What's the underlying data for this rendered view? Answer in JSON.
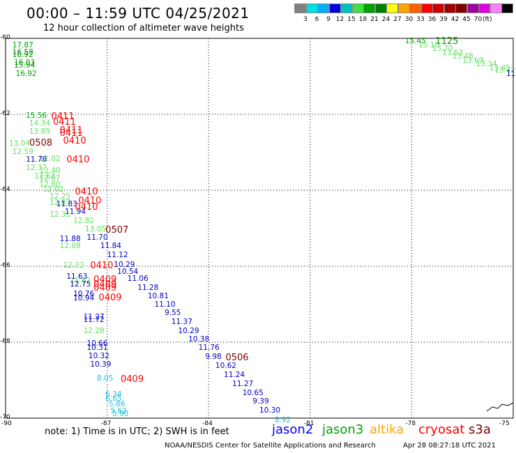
{
  "header": {
    "title": "00:00 – 11:59 UTC 04/25/2021",
    "subtitle": "12 hour collection of altimeter wave heights"
  },
  "legend": {
    "colors": [
      "#808080",
      "#00e0e0",
      "#00b0ff",
      "#0000e0",
      "#00c0c0",
      "#40e040",
      "#00a000",
      "#008000",
      "#ffff00",
      "#ffa500",
      "#ff6000",
      "#ff0000",
      "#d00000",
      "#a00000",
      "#800000",
      "#a000a0",
      "#e000e0",
      "#ff80ff",
      "#000000"
    ],
    "labels": [
      "3",
      "6",
      "9",
      "12",
      "15",
      "18",
      "21",
      "24",
      "27",
      "30",
      "33",
      "36",
      "39",
      "42",
      "45",
      "70"
    ],
    "unit": "(ft)"
  },
  "axes": {
    "lat_labels": [
      "-60",
      "-62",
      "-64",
      "-66",
      "-68",
      "-70"
    ],
    "lon_labels": [
      "-90",
      "-87",
      "-84",
      "-81",
      "-78",
      "-75"
    ]
  },
  "colors": {
    "jason2": "#0000c0",
    "jason3": "#00a000",
    "jason3_light": "#60e060",
    "altika": "#ffa500",
    "cryosat": "#ff0000",
    "cryosat_dark": "#800000",
    "s3a": "#800000",
    "cyan": "#20c0e0"
  },
  "observations": [
    {
      "v": "17.87",
      "c": "jason3",
      "lon": -89.8,
      "lat": -60.2
    },
    {
      "v": "16.58",
      "c": "jason3",
      "lon": -89.8,
      "lat": -60.38
    },
    {
      "v": "16.92",
      "c": "jason3",
      "lon": -89.8,
      "lat": -60.46
    },
    {
      "v": "16.03",
      "c": "jason3",
      "lon": -89.75,
      "lat": -60.66
    },
    {
      "v": "15.94",
      "c": "jason3",
      "lon": -89.75,
      "lat": -60.74
    },
    {
      "v": "16.92",
      "c": "jason3",
      "lon": -89.7,
      "lat": -60.96
    },
    {
      "v": "15.56",
      "c": "jason3",
      "lon": -89.4,
      "lat": -62.05
    },
    {
      "v": "14.34",
      "c": "jason3_light",
      "lon": -89.3,
      "lat": -62.25
    },
    {
      "v": "13.89",
      "c": "jason3_light",
      "lon": -89.3,
      "lat": -62.48
    },
    {
      "v": "13.04",
      "c": "jason3_light",
      "lon": -89.9,
      "lat": -62.78
    },
    {
      "v": "12.59",
      "c": "jason3_light",
      "lon": -89.8,
      "lat": -63.0
    },
    {
      "v": "12.02",
      "c": "jason3_light",
      "lon": -89.0,
      "lat": -63.2
    },
    {
      "v": "11.78",
      "c": "jason2",
      "lon": -89.4,
      "lat": -63.22
    },
    {
      "v": "12.37",
      "c": "jason3_light",
      "lon": -89.4,
      "lat": -63.43
    },
    {
      "v": "12.40",
      "c": "jason3_light",
      "lon": -89.0,
      "lat": -63.5
    },
    {
      "v": "12.62",
      "c": "jason3_light",
      "lon": -89.15,
      "lat": -63.65
    },
    {
      "v": "12.07",
      "c": "jason3_light",
      "lon": -89.0,
      "lat": -63.7
    },
    {
      "v": "12.80",
      "c": "jason3_light",
      "lon": -89.0,
      "lat": -63.88
    },
    {
      "v": "12.02",
      "c": "jason3_light",
      "lon": -88.9,
      "lat": -64.0
    },
    {
      "v": "12.25",
      "c": "jason3_light",
      "lon": -88.7,
      "lat": -64.18
    },
    {
      "v": "12.87",
      "c": "jason3_light",
      "lon": -88.7,
      "lat": -64.34
    },
    {
      "v": "11.83",
      "c": "jason2",
      "lon": -88.5,
      "lat": -64.38
    },
    {
      "v": "11.94",
      "c": "jason2",
      "lon": -88.25,
      "lat": -64.58
    },
    {
      "v": "12.31",
      "c": "jason3_light",
      "lon": -88.7,
      "lat": -64.66
    },
    {
      "v": "12.82",
      "c": "jason3_light",
      "lon": -88.0,
      "lat": -64.82
    },
    {
      "v": "13.05",
      "c": "jason3_light",
      "lon": -87.65,
      "lat": -65.05
    },
    {
      "v": "11.70",
      "c": "jason2",
      "lon": -87.6,
      "lat": -65.26
    },
    {
      "v": "11.88",
      "c": "jason2",
      "lon": -88.4,
      "lat": -65.3
    },
    {
      "v": "11.84",
      "c": "jason2",
      "lon": -87.2,
      "lat": -65.48
    },
    {
      "v": "12.08",
      "c": "jason3_light",
      "lon": -88.4,
      "lat": -65.48
    },
    {
      "v": "11.12",
      "c": "jason2",
      "lon": -87.0,
      "lat": -65.73
    },
    {
      "v": "12.32",
      "c": "jason3_light",
      "lon": -88.3,
      "lat": -66.0
    },
    {
      "v": "10.29",
      "c": "jason2",
      "lon": -86.8,
      "lat": -65.98
    },
    {
      "v": "10.54",
      "c": "jason2",
      "lon": -86.7,
      "lat": -66.16
    },
    {
      "v": "11.63",
      "c": "jason2",
      "lon": -88.2,
      "lat": -66.3
    },
    {
      "v": "11.06",
      "c": "jason2",
      "lon": -86.4,
      "lat": -66.35
    },
    {
      "v": "11.62",
      "c": "jason3_light",
      "lon": -88.1,
      "lat": -66.4
    },
    {
      "v": "12.75",
      "c": "jason2",
      "lon": -88.1,
      "lat": -66.5
    },
    {
      "v": "11.28",
      "c": "jason2",
      "lon": -86.1,
      "lat": -66.58
    },
    {
      "v": "10.76",
      "c": "jason2",
      "lon": -88.0,
      "lat": -66.76
    },
    {
      "v": "10.81",
      "c": "jason2",
      "lon": -85.8,
      "lat": -66.8
    },
    {
      "v": "10.94",
      "c": "jason2",
      "lon": -88.0,
      "lat": -66.86
    },
    {
      "v": "11.10",
      "c": "jason2",
      "lon": -85.6,
      "lat": -67.03
    },
    {
      "v": "9.55",
      "c": "jason2",
      "lon": -85.3,
      "lat": -67.25
    },
    {
      "v": "11.27",
      "c": "jason2",
      "lon": -87.7,
      "lat": -67.35
    },
    {
      "v": "11.72",
      "c": "jason2",
      "lon": -87.7,
      "lat": -67.43
    },
    {
      "v": "11.37",
      "c": "jason2",
      "lon": -85.1,
      "lat": -67.48
    },
    {
      "v": "10.29",
      "c": "jason2",
      "lon": -84.9,
      "lat": -67.72
    },
    {
      "v": "12.28",
      "c": "jason3_light",
      "lon": -87.7,
      "lat": -67.73
    },
    {
      "v": "10.38",
      "c": "jason2",
      "lon": -84.6,
      "lat": -67.95
    },
    {
      "v": "10.66",
      "c": "jason2",
      "lon": -87.6,
      "lat": -68.05
    },
    {
      "v": "11.76",
      "c": "jason2",
      "lon": -84.3,
      "lat": -68.17
    },
    {
      "v": "10.31",
      "c": "jason2",
      "lon": -87.6,
      "lat": -68.17
    },
    {
      "v": "10.32",
      "c": "jason2",
      "lon": -87.55,
      "lat": -68.38
    },
    {
      "v": "9.98",
      "c": "jason2",
      "lon": -84.1,
      "lat": -68.4
    },
    {
      "v": "10.39",
      "c": "jason2",
      "lon": -87.5,
      "lat": -68.6
    },
    {
      "v": "10.62",
      "c": "jason2",
      "lon": -83.8,
      "lat": -68.65
    },
    {
      "v": "11.24",
      "c": "jason2",
      "lon": -83.55,
      "lat": -68.88
    },
    {
      "v": "8.05",
      "c": "cyan",
      "lon": -87.3,
      "lat": -68.98
    },
    {
      "v": "11.27",
      "c": "jason2",
      "lon": -83.3,
      "lat": -69.12
    },
    {
      "v": "10.65",
      "c": "jason2",
      "lon": -83.0,
      "lat": -69.35
    },
    {
      "v": "6.34",
      "c": "cyan",
      "lon": -87.05,
      "lat": -69.4
    },
    {
      "v": "6.65",
      "c": "cyan",
      "lon": -87.05,
      "lat": -69.5
    },
    {
      "v": "9.39",
      "c": "jason2",
      "lon": -82.7,
      "lat": -69.58
    },
    {
      "v": "5.86",
      "c": "cyan",
      "lon": -86.95,
      "lat": -69.66
    },
    {
      "v": "10.30",
      "c": "jason2",
      "lon": -82.5,
      "lat": -69.82
    },
    {
      "v": "5.62",
      "c": "cyan",
      "lon": -86.9,
      "lat": -69.84
    },
    {
      "v": "5.90",
      "c": "cyan",
      "lon": -86.85,
      "lat": -69.9
    },
    {
      "v": "8.92",
      "c": "cyan",
      "lon": -82.05,
      "lat": -70.08
    },
    {
      "v": "15.45",
      "c": "jason3",
      "lon": -78.2,
      "lat": -60.1
    },
    {
      "v": "15.10",
      "c": "jason3_light",
      "lon": -77.8,
      "lat": -60.2
    },
    {
      "v": "13.70",
      "c": "jason3_light",
      "lon": -77.4,
      "lat": -60.3
    },
    {
      "v": "13.63",
      "c": "jason3_light",
      "lon": -77.1,
      "lat": -60.4
    },
    {
      "v": "13.48",
      "c": "jason3_light",
      "lon": -76.8,
      "lat": -60.5
    },
    {
      "v": "13.69",
      "c": "jason3_light",
      "lon": -76.5,
      "lat": -60.6
    },
    {
      "v": "13.34",
      "c": "jason3_light",
      "lon": -76.1,
      "lat": -60.7
    },
    {
      "v": "13.45",
      "c": "jason3_light",
      "lon": -75.7,
      "lat": -60.8
    },
    {
      "v": "13.42",
      "c": "jason3_light",
      "lon": -75.35,
      "lat": -60.86
    },
    {
      "v": "11",
      "c": "jason2",
      "lon": -75.15,
      "lat": -60.96
    }
  ],
  "time_tags": [
    {
      "v": "0411",
      "c": "cryosat",
      "lon": -88.65,
      "lat": -62.05
    },
    {
      "v": "0411",
      "c": "cryosat",
      "lon": -88.6,
      "lat": -62.2
    },
    {
      "v": "0411",
      "c": "cryosat",
      "lon": -88.4,
      "lat": -62.43
    },
    {
      "v": "0411",
      "c": "cryosat",
      "lon": -88.4,
      "lat": -62.5
    },
    {
      "v": "0410",
      "c": "cryosat",
      "lon": -88.3,
      "lat": -62.7
    },
    {
      "v": "0508",
      "c": "cryosat_dark",
      "lon": -89.3,
      "lat": -62.75
    },
    {
      "v": "0410",
      "c": "cryosat",
      "lon": -88.2,
      "lat": -63.2
    },
    {
      "v": "0410",
      "c": "cryosat",
      "lon": -87.95,
      "lat": -64.03
    },
    {
      "v": "0410",
      "c": "cryosat",
      "lon": -87.85,
      "lat": -64.28
    },
    {
      "v": "0410",
      "c": "cryosat",
      "lon": -87.95,
      "lat": -64.44
    },
    {
      "v": "0507",
      "c": "cryosat_dark",
      "lon": -87.05,
      "lat": -65.05
    },
    {
      "v": "0410",
      "c": "cryosat",
      "lon": -87.5,
      "lat": -65.98
    },
    {
      "v": "0409",
      "c": "cryosat",
      "lon": -87.4,
      "lat": -66.35
    },
    {
      "v": "0409",
      "c": "cryosat",
      "lon": -87.4,
      "lat": -66.48
    },
    {
      "v": "0409",
      "c": "cryosat",
      "lon": -87.4,
      "lat": -66.57
    },
    {
      "v": "0409",
      "c": "cryosat",
      "lon": -87.25,
      "lat": -66.83
    },
    {
      "v": "0506",
      "c": "cryosat_dark",
      "lon": -83.5,
      "lat": -68.4
    },
    {
      "v": "0409",
      "c": "cryosat",
      "lon": -86.6,
      "lat": -68.98
    },
    {
      "v": "1125",
      "c": "jason3",
      "lon": -77.3,
      "lat": -60.08
    }
  ],
  "footer": {
    "note": "note: 1) Time is in UTC; 2) SWH is in feet",
    "satellites": [
      {
        "name": "jason2",
        "color": "#0000ff"
      },
      {
        "name": "jason3",
        "color": "#00a000"
      },
      {
        "name": "altika",
        "color": "#ffa500"
      },
      {
        "name": "cryosat",
        "color": "#ff0000"
      },
      {
        "name": "s3a",
        "color": "#800000"
      }
    ],
    "credit": "NOAA/NESDIS Center for Satellite Applications and Research",
    "timestamp": "Apr 28 08:27:18 UTC 2021"
  }
}
